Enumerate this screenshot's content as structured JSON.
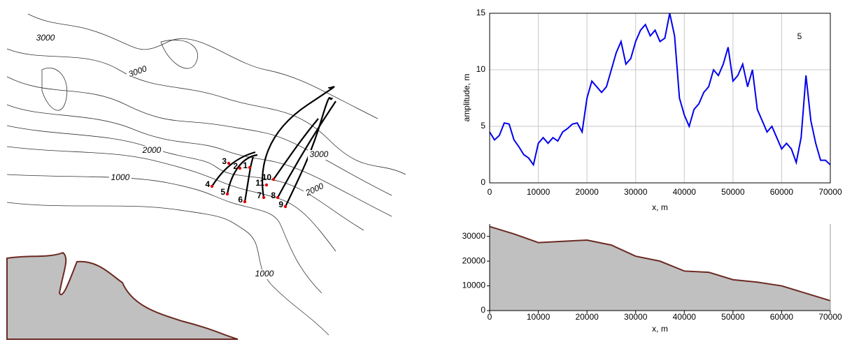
{
  "chart_data": [
    {
      "type": "map",
      "contour_labels": [
        "3000",
        "3000",
        "2000",
        "1000",
        "3000",
        "2000",
        "1000"
      ],
      "point_labels": [
        "1",
        "2",
        "3",
        "4",
        "5",
        "6",
        "7",
        "8",
        "9",
        "10",
        "11"
      ]
    },
    {
      "type": "line",
      "annotation": "5",
      "ylabel": "amplitude, m",
      "xlabel": "x, m",
      "color": "#0000ee",
      "grid": true,
      "xlim": [
        0,
        70000
      ],
      "xticks": [
        0,
        10000,
        20000,
        30000,
        40000,
        50000,
        60000,
        70000
      ],
      "ylim": [
        0,
        15
      ],
      "yticks": [
        0,
        5,
        10,
        15
      ],
      "x": [
        0,
        1000,
        2000,
        3000,
        4000,
        5000,
        6000,
        7000,
        8000,
        9000,
        10000,
        11000,
        12000,
        13000,
        14000,
        15000,
        16000,
        17000,
        18000,
        19000,
        20000,
        21000,
        22000,
        23000,
        24000,
        25000,
        26000,
        27000,
        28000,
        29000,
        30000,
        31000,
        32000,
        33000,
        34000,
        35000,
        36000,
        37000,
        38000,
        39000,
        40000,
        41000,
        42000,
        43000,
        44000,
        45000,
        46000,
        47000,
        48000,
        49000,
        50000,
        51000,
        52000,
        53000,
        54000,
        55000,
        56000,
        57000,
        58000,
        59000,
        60000,
        61000,
        62000,
        63000,
        64000,
        65000,
        66000,
        67000,
        68000,
        69000,
        70000
      ],
      "values": [
        4.5,
        3.8,
        4.2,
        5.3,
        5.2,
        3.8,
        3.2,
        2.5,
        2.2,
        1.6,
        3.5,
        4.0,
        3.5,
        4.0,
        3.7,
        4.5,
        4.8,
        5.2,
        5.3,
        4.5,
        7.5,
        9.0,
        8.5,
        8.0,
        8.5,
        10.0,
        11.5,
        12.5,
        10.5,
        11.0,
        12.5,
        13.5,
        14.0,
        13.0,
        13.5,
        12.5,
        12.8,
        15.0,
        13.0,
        7.5,
        6.0,
        5.0,
        6.5,
        7.0,
        8.0,
        8.5,
        10.0,
        9.5,
        10.5,
        12.0,
        9.0,
        9.5,
        10.5,
        8.5,
        10.0,
        6.5,
        5.5,
        4.5,
        5.0,
        4.0,
        3.0,
        3.5,
        3.0,
        1.8,
        4.0,
        9.5,
        5.5,
        3.5,
        2.0,
        2.0,
        1.6
      ]
    },
    {
      "type": "area",
      "xlabel": "x, m",
      "color": "#c0c0c0",
      "edge_color": "#6b2a22",
      "xlim": [
        0,
        70000
      ],
      "xticks": [
        0,
        10000,
        20000,
        30000,
        40000,
        50000,
        60000,
        70000
      ],
      "ylim": [
        0,
        35000
      ],
      "yticks": [
        0,
        10000,
        20000,
        30000
      ],
      "x": [
        0,
        5000,
        10000,
        15000,
        20000,
        25000,
        30000,
        35000,
        40000,
        45000,
        50000,
        55000,
        60000,
        65000,
        70000
      ],
      "values": [
        34000,
        31000,
        27500,
        28000,
        28500,
        26500,
        22000,
        20000,
        16000,
        15500,
        12500,
        11500,
        10000,
        7000,
        4000
      ]
    }
  ]
}
